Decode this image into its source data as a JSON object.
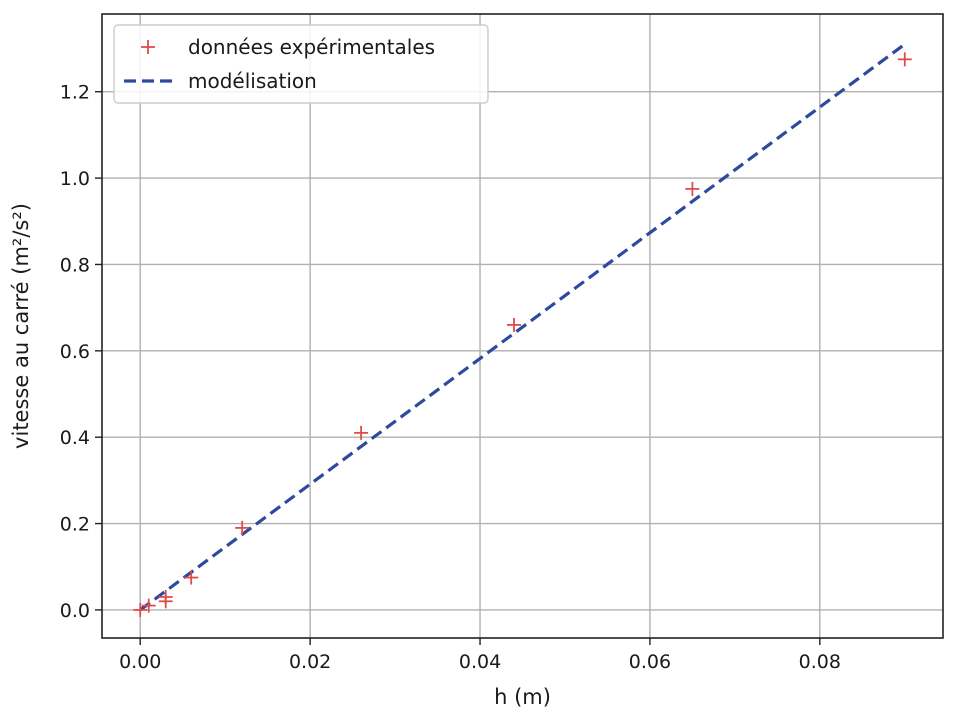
{
  "chart_data": {
    "type": "scatter",
    "title": "",
    "xlabel": "h (m)",
    "ylabel": "vitesse au carré (m²/s²)",
    "xlim": [
      -0.0045,
      0.0945
    ],
    "ylim": [
      -0.065,
      1.38
    ],
    "xticks": [
      0.0,
      0.02,
      0.04,
      0.06,
      0.08
    ],
    "xtick_labels": [
      "0.00",
      "0.02",
      "0.04",
      "0.06",
      "0.08"
    ],
    "yticks": [
      0.0,
      0.2,
      0.4,
      0.6,
      0.8,
      1.0,
      1.2
    ],
    "ytick_labels": [
      "0.0",
      "0.2",
      "0.4",
      "0.6",
      "0.8",
      "1.0",
      "1.2"
    ],
    "grid": true,
    "legend_position": "top-left",
    "series": [
      {
        "name": "données expérimentales",
        "kind": "scatter",
        "marker": "plus",
        "color": "#e04b4b",
        "x": [
          0.0,
          0.001,
          0.003,
          0.003,
          0.006,
          0.012,
          0.026,
          0.044,
          0.065,
          0.09
        ],
        "y": [
          0.0,
          0.01,
          0.03,
          0.02,
          0.075,
          0.19,
          0.41,
          0.66,
          0.975,
          1.275
        ]
      },
      {
        "name": "modélisation",
        "kind": "line",
        "style": "dashed",
        "color": "#2e4a9e",
        "x": [
          0.0,
          0.09
        ],
        "y": [
          0.0,
          1.31
        ]
      }
    ]
  }
}
